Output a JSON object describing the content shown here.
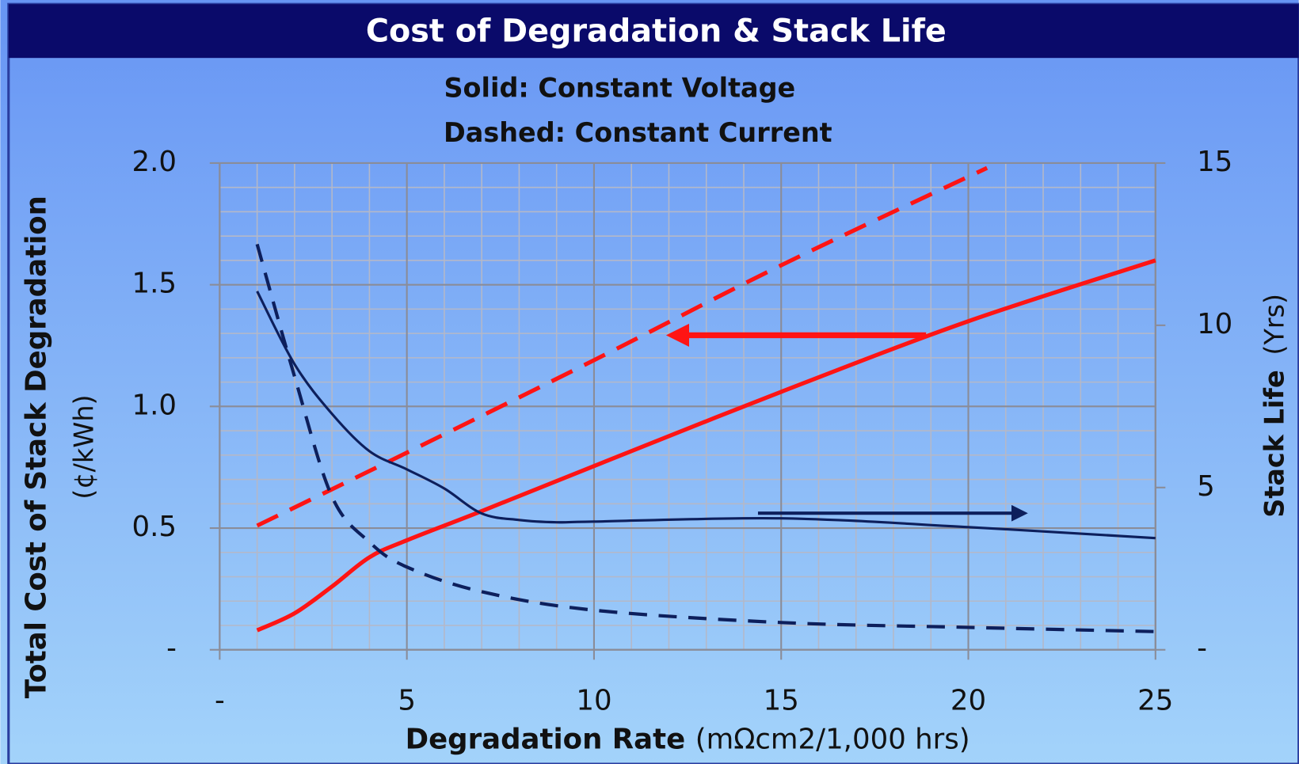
{
  "chart_data": {
    "type": "line",
    "title": "Cost of Degradation & Stack Life",
    "subtitle": [
      "Solid: Constant Voltage",
      "Dashed: Constant Current"
    ],
    "xlabel": {
      "bold": "Degradation Rate",
      "normal": "(mΩcm2/1,000 hrs)"
    },
    "ylabel": [
      "Total Cost of Stack Degradation",
      "(¢/kWh)"
    ],
    "y2label": {
      "bold": "Stack Life",
      "normal": "(Yrs)"
    },
    "xlim": [
      0,
      25
    ],
    "xticks": [
      {
        "value": 0,
        "label": "-"
      },
      5,
      10,
      15,
      20,
      25
    ],
    "xminorticks": [
      1,
      2,
      3,
      4,
      6,
      7,
      8,
      9,
      11,
      12,
      13,
      14,
      16,
      17,
      18,
      19,
      21,
      22,
      23,
      24
    ],
    "ylim": [
      0,
      2
    ],
    "yticks": [
      {
        "value": 0,
        "label": "-"
      },
      0.5,
      {
        "value": 1,
        "label": "1.0"
      },
      1.5,
      {
        "value": 2,
        "label": "2.0"
      }
    ],
    "yminorticks": [
      0.1,
      0.2,
      0.3,
      0.4,
      0.6,
      0.7,
      0.8,
      0.9,
      1.1,
      1.2,
      1.3,
      1.4,
      1.6,
      1.7,
      1.8,
      1.9
    ],
    "y2lim": [
      0,
      15
    ],
    "y2ticks": [
      {
        "value": 0,
        "label": "-"
      },
      5,
      10,
      15
    ],
    "grid": true,
    "series": [
      {
        "color": "#ff1414",
        "dashed": false,
        "axis": "y",
        "x": [
          1,
          2,
          3,
          4,
          5,
          7,
          10,
          15,
          20,
          25
        ],
        "values": [
          0.08,
          0.15,
          0.26,
          0.38,
          0.45,
          0.57,
          0.755,
          1.06,
          1.35,
          1.6
        ]
      },
      {
        "color": "#ff1414",
        "dashed": true,
        "axis": "y",
        "x": [
          1,
          5,
          10,
          15,
          20.5
        ],
        "values": [
          0.51,
          0.81,
          1.19,
          1.58,
          1.98
        ]
      },
      {
        "color": "#0d1f5c",
        "dashed": false,
        "axis": "y2",
        "x": [
          1,
          2,
          3,
          4,
          5,
          6,
          7,
          8,
          9,
          10,
          15,
          20,
          25
        ],
        "values": [
          11.05,
          8.8,
          7.27,
          6.12,
          5.56,
          4.97,
          4.2,
          4.0,
          3.93,
          3.95,
          4.05,
          3.78,
          3.44
        ]
      },
      {
        "color": "#0d1f5c",
        "dashed": true,
        "axis": "y2",
        "x": [
          1,
          2,
          3,
          4,
          5,
          7,
          10,
          15,
          20,
          25
        ],
        "values": [
          12.5,
          8.42,
          4.72,
          3.32,
          2.55,
          1.79,
          1.22,
          0.84,
          0.69,
          0.56
        ]
      }
    ]
  }
}
